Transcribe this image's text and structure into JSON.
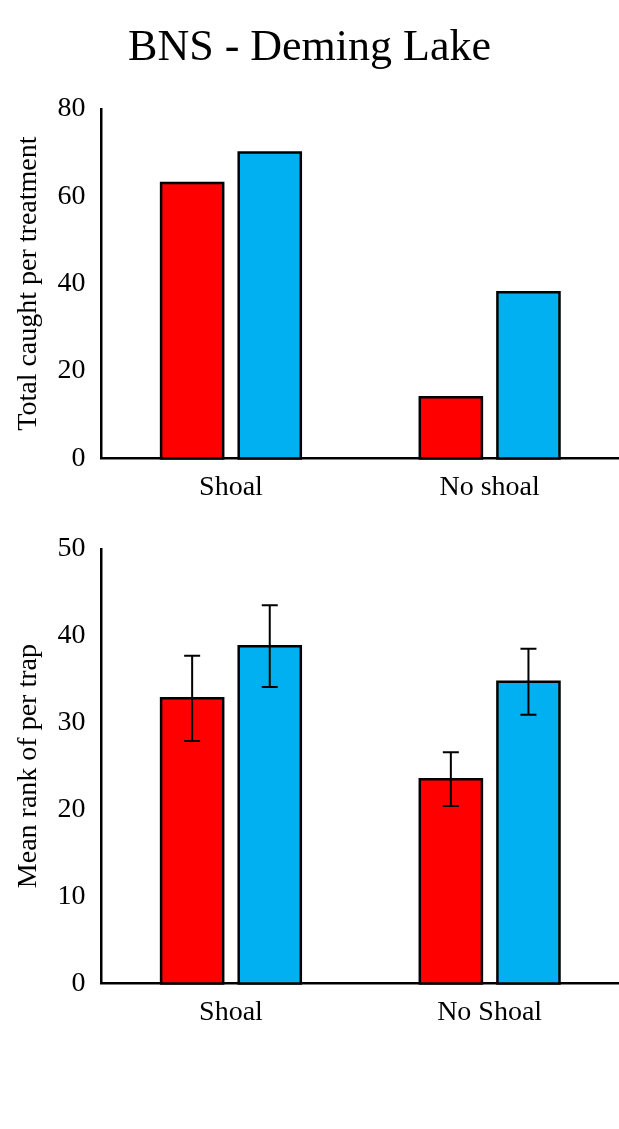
{
  "chart_data": [
    {
      "type": "bar",
      "title": "BNS - Deming Lake",
      "ylabel": "Total caught per treatment",
      "categories": [
        "Shoal",
        "No shoal"
      ],
      "ylim": [
        0,
        80
      ],
      "yticks": [
        0,
        20,
        40,
        60,
        80
      ],
      "series": [
        {
          "color": "#ff0000",
          "values": [
            63,
            14
          ]
        },
        {
          "color": "#00b0f0",
          "values": [
            70,
            38
          ]
        }
      ]
    },
    {
      "type": "bar",
      "ylabel": "Mean rank of per trap",
      "categories": [
        "Shoal",
        "No Shoal"
      ],
      "ylim": [
        0,
        50
      ],
      "yticks": [
        0,
        10,
        20,
        30,
        40,
        50
      ],
      "series": [
        {
          "color": "#ff0000",
          "values": [
            32.8,
            23.5
          ],
          "errors": [
            4.9,
            3.1
          ]
        },
        {
          "color": "#00b0f0",
          "values": [
            38.8,
            34.7
          ],
          "errors": [
            4.7,
            3.8
          ]
        }
      ]
    }
  ]
}
